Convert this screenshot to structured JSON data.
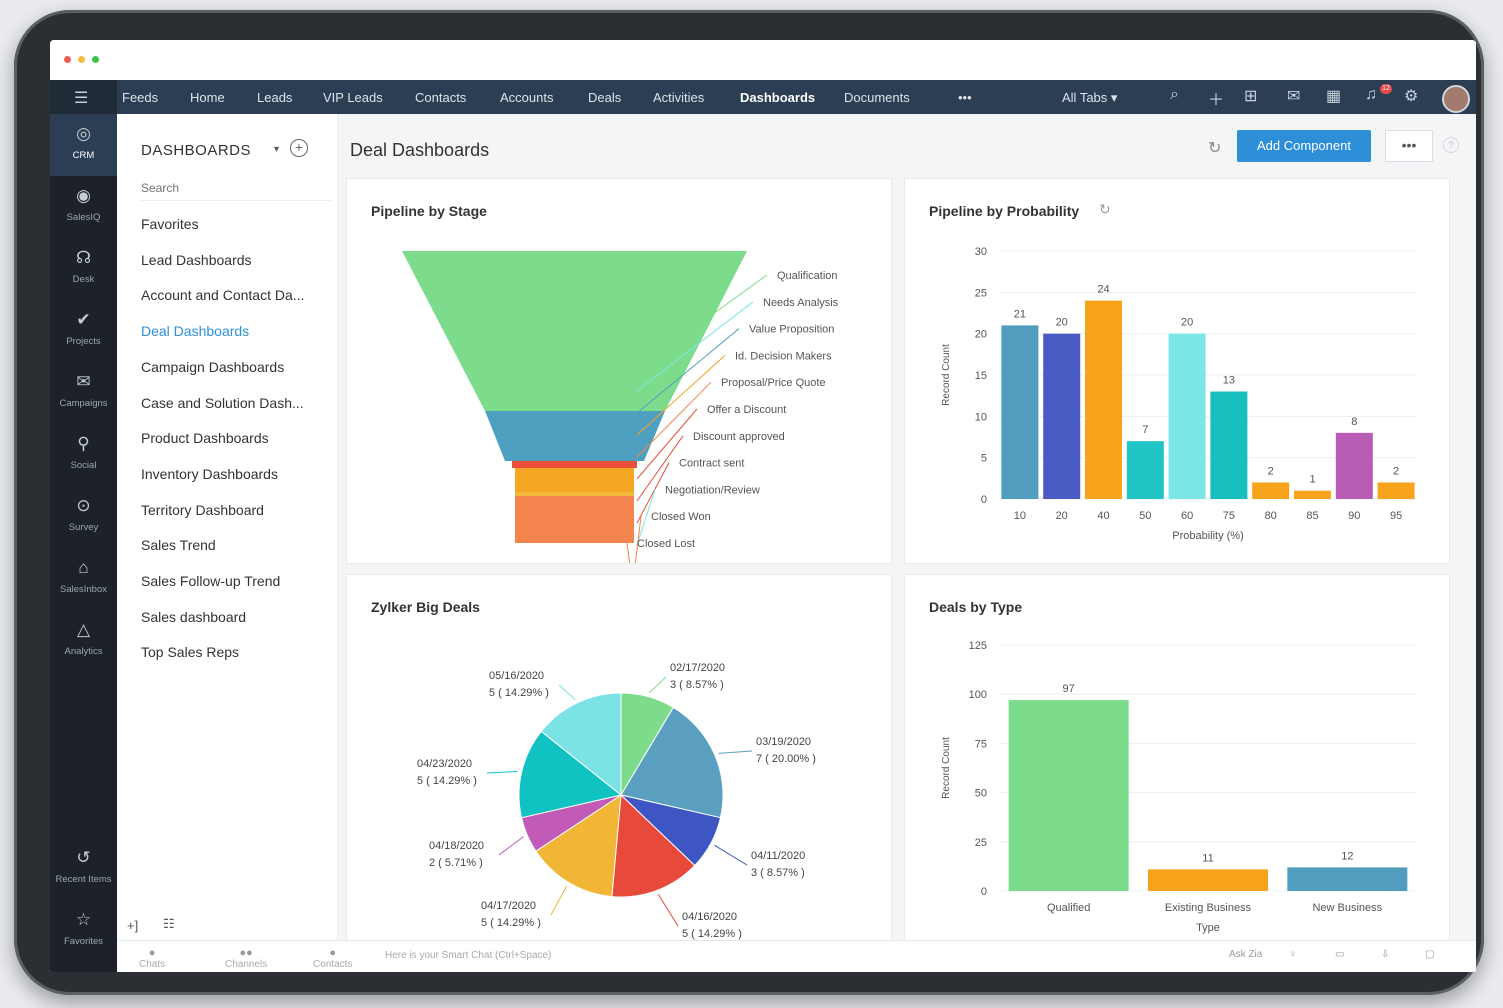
{
  "topnav": {
    "items": [
      "Feeds",
      "Home",
      "Leads",
      "VIP Leads",
      "Contacts",
      "Accounts",
      "Deals",
      "Activities",
      "Dashboards",
      "Documents"
    ],
    "active": "Dashboards",
    "more": "•••",
    "all_tabs": "All Tabs ▾",
    "notification_count": "12"
  },
  "sidebar": {
    "items": [
      {
        "label": "CRM",
        "icon": "crm-icon",
        "glyph": "◎"
      },
      {
        "label": "SalesIQ",
        "icon": "salesiq-icon",
        "glyph": "◉"
      },
      {
        "label": "Desk",
        "icon": "desk-icon",
        "glyph": "☊"
      },
      {
        "label": "Projects",
        "icon": "projects-icon",
        "glyph": "✔"
      },
      {
        "label": "Campaigns",
        "icon": "campaigns-icon",
        "glyph": "✉"
      },
      {
        "label": "Social",
        "icon": "social-icon",
        "glyph": "⚲"
      },
      {
        "label": "Survey",
        "icon": "survey-icon",
        "glyph": "⊙"
      },
      {
        "label": "SalesInbox",
        "icon": "salesinbox-icon",
        "glyph": "⌂"
      },
      {
        "label": "Analytics",
        "icon": "analytics-icon",
        "glyph": "△"
      }
    ],
    "bottom": [
      {
        "label": "Recent Items",
        "icon": "history-icon",
        "glyph": "↺"
      },
      {
        "label": "Favorites",
        "icon": "star-icon",
        "glyph": "☆"
      }
    ]
  },
  "panel": {
    "title": "DASHBOARDS",
    "search_placeholder": "Search",
    "items": [
      "Favorites",
      "Lead Dashboards",
      "Account and Contact Da...",
      "Deal Dashboards",
      "Campaign Dashboards",
      "Case and Solution Dash...",
      "Product Dashboards",
      "Inventory Dashboards",
      "Territory Dashboard",
      "Sales Trend",
      "Sales Follow-up Trend",
      "Sales dashboard",
      "Top Sales Reps"
    ],
    "active": "Deal Dashboards"
  },
  "main": {
    "title": "Deal Dashboards",
    "add_component": "Add Component",
    "more": "•••",
    "help": "?"
  },
  "cards": {
    "pipeline_stage": "Pipeline by Stage",
    "pipeline_probability": "Pipeline by Probability",
    "big_deals": "Zylker Big Deals",
    "deals_type": "Deals by Type"
  },
  "bottombar": {
    "tabs": [
      "Chats",
      "Channels",
      "Contacts"
    ],
    "smart_chat": "Here is your Smart Chat (Ctrl+Space)",
    "ask_zia": "Ask Zia"
  },
  "chart_data": [
    {
      "type": "funnel",
      "title": "Pipeline by Stage",
      "stages": [
        "Qualification",
        "Needs Analysis",
        "Value Proposition",
        "Id. Decision Makers",
        "Proposal/Price Quote",
        "Offer a Discount",
        "Discount approved",
        "Contract sent",
        "Negotiation/Review",
        "Closed Won",
        "Closed Lost"
      ],
      "colors": [
        "#7ddc8c",
        "#4f9fc0",
        "#3d5bc2",
        "#f5a623",
        "#22c5c5",
        "#e94f3a",
        "#e94f3a",
        "#e94f3a",
        "#f0b93a",
        "#f4844e",
        "#f4844e"
      ]
    },
    {
      "type": "bar",
      "title": "Pipeline by Probability",
      "xlabel": "Probability (%)",
      "ylabel": "Record Count",
      "categories": [
        "10",
        "20",
        "40",
        "50",
        "60",
        "75",
        "80",
        "85",
        "90",
        "95"
      ],
      "values": [
        21,
        20,
        24,
        7,
        20,
        13,
        2,
        1,
        8,
        2
      ],
      "colors": [
        "#519dc0",
        "#4a5bc4",
        "#f7a41c",
        "#22c5c5",
        "#7de6e6",
        "#19bfbf",
        "#f7a41c",
        "#f7a41c",
        "#b85cb5",
        "#f7a41c"
      ],
      "yticks": [
        0,
        5,
        10,
        15,
        20,
        25,
        30
      ],
      "ylim": [
        0,
        30
      ]
    },
    {
      "type": "pie",
      "title": "Zylker Big Deals",
      "slices": [
        {
          "label": "02/17/2020",
          "value": 3,
          "pct": "3 ( 8.57% )",
          "color": "#7ddc8c"
        },
        {
          "label": "03/19/2020",
          "value": 7,
          "pct": "7 ( 20.00% )",
          "color": "#5b9fc0"
        },
        {
          "label": "04/11/2020",
          "value": 3,
          "pct": "3 ( 8.57% )",
          "color": "#3d56c4"
        },
        {
          "label": "04/16/2020",
          "value": 5,
          "pct": "5 ( 14.29% )",
          "color": "#e7493a"
        },
        {
          "label": "04/17/2020",
          "value": 5,
          "pct": "5 ( 14.29% )",
          "color": "#f2b636"
        },
        {
          "label": "04/18/2020",
          "value": 2,
          "pct": "2 ( 5.71% )",
          "color": "#c25ab8"
        },
        {
          "label": "04/23/2020",
          "value": 5,
          "pct": "5 ( 14.29% )",
          "color": "#10c2c2"
        },
        {
          "label": "05/16/2020",
          "value": 5,
          "pct": "5 ( 14.29% )",
          "color": "#7be3e6"
        }
      ]
    },
    {
      "type": "bar",
      "title": "Deals by Type",
      "xlabel": "Type",
      "ylabel": "Record Count",
      "categories": [
        "Qualified",
        "Existing Business",
        "New Business"
      ],
      "values": [
        97,
        11,
        12
      ],
      "colors": [
        "#7ddc8c",
        "#f7a41c",
        "#519dc0"
      ],
      "yticks": [
        0,
        25,
        50,
        75,
        100,
        125
      ],
      "ylim": [
        0,
        125
      ]
    }
  ]
}
